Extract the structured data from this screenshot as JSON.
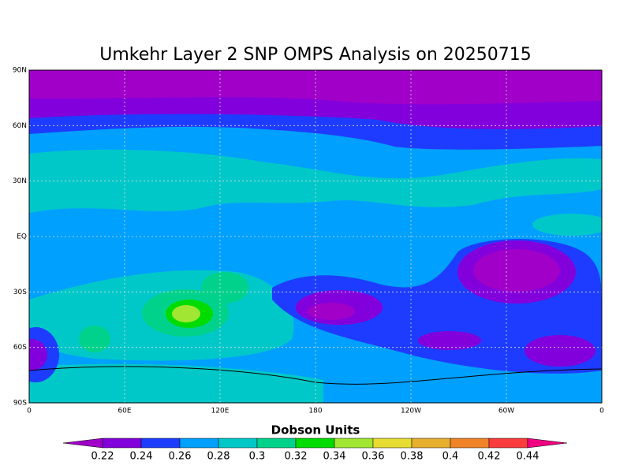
{
  "title": "Umkehr Layer 2 SNP OMPS Analysis on 20250715",
  "lat_labels": [
    "90N",
    "60N",
    "30N",
    "EQ",
    "30S",
    "60S",
    "90S"
  ],
  "lon_labels": [
    "0",
    "60E",
    "120E",
    "180",
    "120W",
    "60W",
    "0"
  ],
  "grid": true,
  "colorbar": {
    "title": "Dobson Units",
    "levels": [
      0.22,
      0.24,
      0.26,
      0.28,
      0.3,
      0.32,
      0.34,
      0.36,
      0.38,
      0.4,
      0.42,
      0.44
    ],
    "colors": [
      "#a000c8",
      "#8200dc",
      "#1e3cff",
      "#00a0ff",
      "#00c8c8",
      "#00d28c",
      "#00dc00",
      "#a0e632",
      "#e6dc32",
      "#e6af2d",
      "#f08228",
      "#fa3c3c",
      "#f00082"
    ]
  }
}
